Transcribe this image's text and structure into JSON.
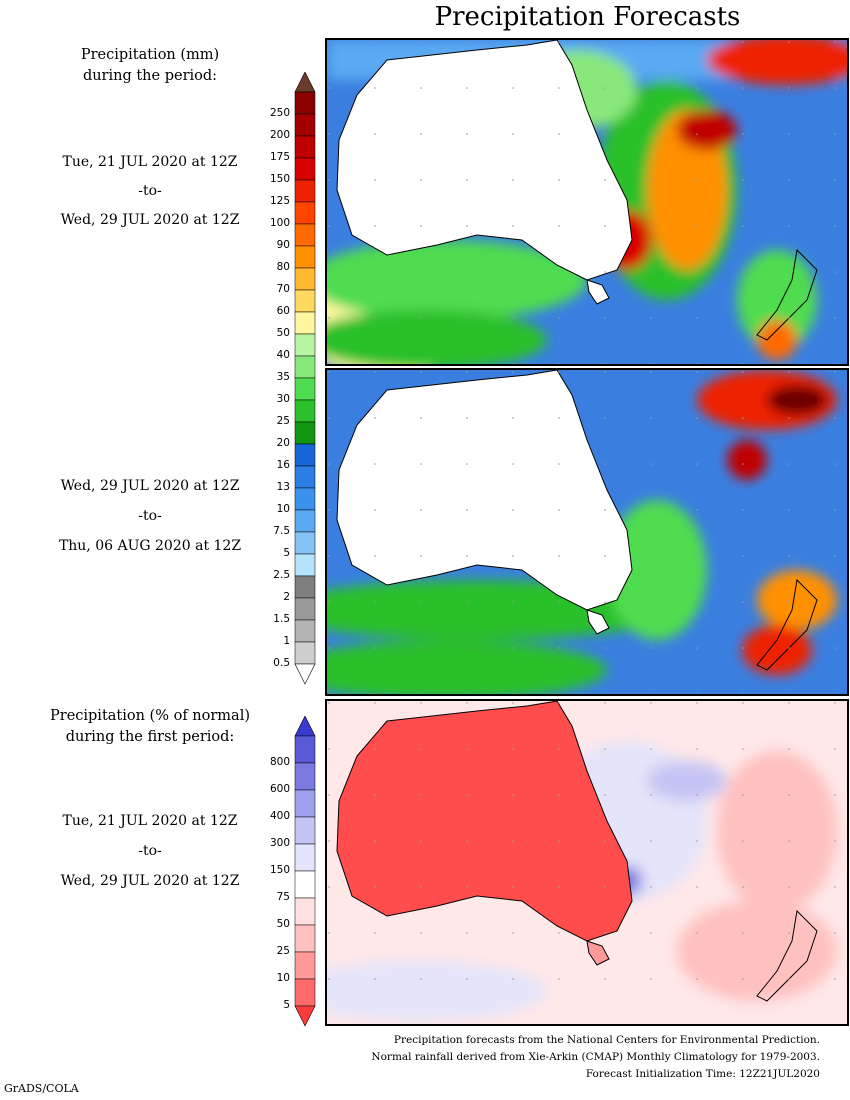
{
  "title": "Precipitation Forecasts",
  "legend_mm": {
    "heading_line1": "Precipitation (mm)",
    "heading_line2": "during the period:",
    "ticks": [
      "250",
      "200",
      "175",
      "150",
      "125",
      "100",
      "90",
      "80",
      "70",
      "60",
      "50",
      "40",
      "35",
      "30",
      "25",
      "20",
      "16",
      "13",
      "10",
      "7.5",
      "5",
      "2.5",
      "2",
      "1.5",
      "1",
      "0.5"
    ],
    "colors": [
      "#8b0000",
      "#a50000",
      "#c00000",
      "#d90000",
      "#ee2200",
      "#ff4400",
      "#ff6a00",
      "#ff9000",
      "#ffb830",
      "#ffd860",
      "#fff7a0",
      "#b8f5a0",
      "#88e87a",
      "#4fdc4f",
      "#2cc02c",
      "#129612",
      "#1666d8",
      "#2a7ee6",
      "#3a92ee",
      "#5aa9f2",
      "#84c3f6",
      "#b4e3fa",
      "#7f7f7f",
      "#9a9a9a",
      "#b4b4b4",
      "#cecece"
    ]
  },
  "period1": {
    "start": "Tue, 21 JUL 2020 at 12Z",
    "sep": "-to-",
    "end": "Wed, 29 JUL 2020 at 12Z"
  },
  "period2": {
    "start": "Wed, 29 JUL 2020 at 12Z",
    "sep": "-to-",
    "end": "Thu, 06 AUG 2020 at 12Z"
  },
  "legend_pct": {
    "heading_line1": "Precipitation (% of normal)",
    "heading_line2": "during the first period:",
    "ticks": [
      "800",
      "600",
      "400",
      "300",
      "150",
      "75",
      "50",
      "25",
      "10",
      "5"
    ],
    "colors": [
      "#5a5ad8",
      "#7a7ae2",
      "#a0a0ec",
      "#c4c4f4",
      "#e4e4fa",
      "#ffffff",
      "#ffe0e0",
      "#ffc0c0",
      "#ff9a9a",
      "#ff6a6a"
    ]
  },
  "period3": {
    "start": "Tue, 21 JUL 2020 at 12Z",
    "sep": "-to-",
    "end": "Wed, 29 JUL 2020 at 12Z"
  },
  "footer": {
    "line1": "Precipitation forecasts from the National Centers for Environmental Prediction.",
    "line2": "Normal rainfall derived from Xie-Arkin (CMAP) Monthly Climatology for 1979-2003.",
    "line3": "Forecast Initialization Time: 12Z21JUL2020"
  },
  "credit": "GrADS/COLA"
}
